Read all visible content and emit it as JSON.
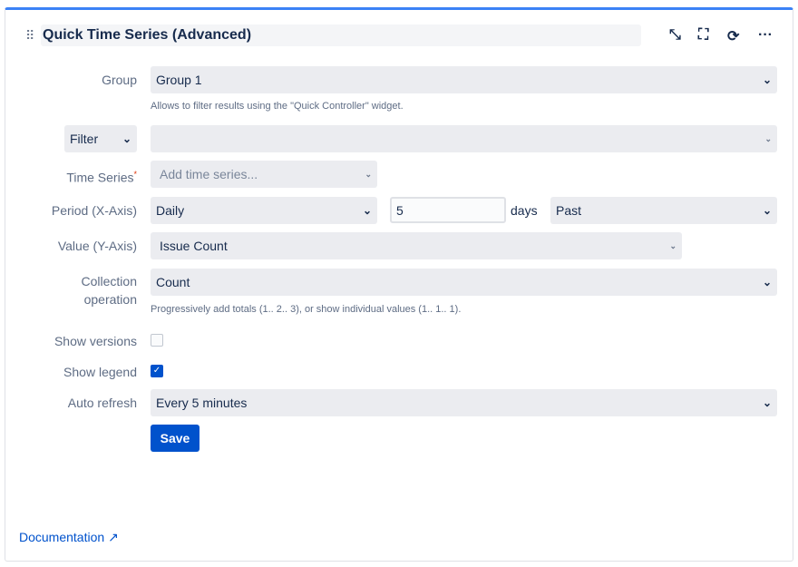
{
  "header": {
    "title": "Quick Time Series (Advanced)",
    "icons": [
      "drag-handle-icon",
      "collapse-icon",
      "fullscreen-icon",
      "refresh-icon",
      "more-icon"
    ]
  },
  "group": {
    "label": "Group",
    "value": "Group 1",
    "hint": "Allows to filter results using the \"Quick Controller\" widget."
  },
  "filter": {
    "button": "Filter",
    "value": ""
  },
  "time_series": {
    "label": "Time Series",
    "required": "*",
    "placeholder": "Add time series..."
  },
  "period": {
    "label": "Period (X-Axis)",
    "value": "Daily",
    "count": "5",
    "unit": "days",
    "direction": "Past"
  },
  "value": {
    "label": "Value (Y-Axis)",
    "value": "Issue Count"
  },
  "collection": {
    "label_line1": "Collection",
    "label_line2": "operation",
    "value": "Count",
    "hint": "Progressively add totals (1.. 2.. 3), or show individual values (1.. 1.. 1)."
  },
  "show_versions": {
    "label": "Show versions",
    "checked": false
  },
  "show_legend": {
    "label": "Show legend",
    "checked": true
  },
  "auto_refresh": {
    "label": "Auto refresh",
    "value": "Every 5 minutes"
  },
  "save_label": "Save",
  "documentation": "Documentation",
  "colors": {
    "accent": "#3b82f6",
    "primary": "#0052cc",
    "field_bg": "#ebecf0"
  }
}
